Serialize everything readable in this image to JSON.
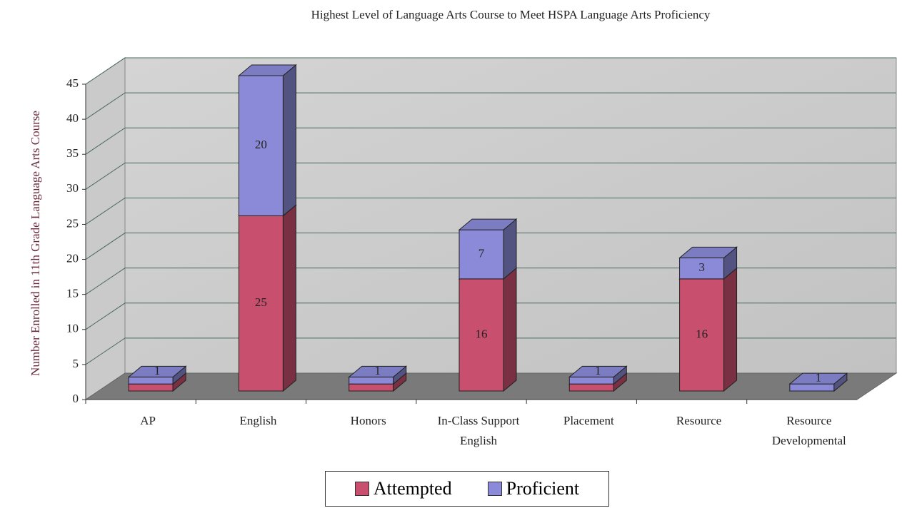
{
  "chart_data": {
    "type": "bar3d_stacked",
    "title": "Highest Level of Language Arts Course to Meet HSPA Language Arts Proficiency",
    "y_label": "Number Enrolled in 11th Grade Language Arts Course",
    "categories": [
      "AP",
      "English",
      "Honors",
      "In-Class Support English",
      "Placement",
      "Resource",
      "Resource Developmental"
    ],
    "series": [
      {
        "name": "Attempted",
        "color": "#c8506e",
        "values": [
          1,
          25,
          1,
          16,
          1,
          16,
          0
        ]
      },
      {
        "name": "Proficient",
        "color": "#8a8ad8",
        "values": [
          1,
          20,
          1,
          7,
          1,
          3,
          1
        ]
      }
    ],
    "ylim": [
      0,
      45
    ],
    "yticks": [
      0,
      5,
      10,
      15,
      20,
      25,
      30,
      35,
      40,
      45
    ],
    "grid": true,
    "legend": "bottom"
  }
}
